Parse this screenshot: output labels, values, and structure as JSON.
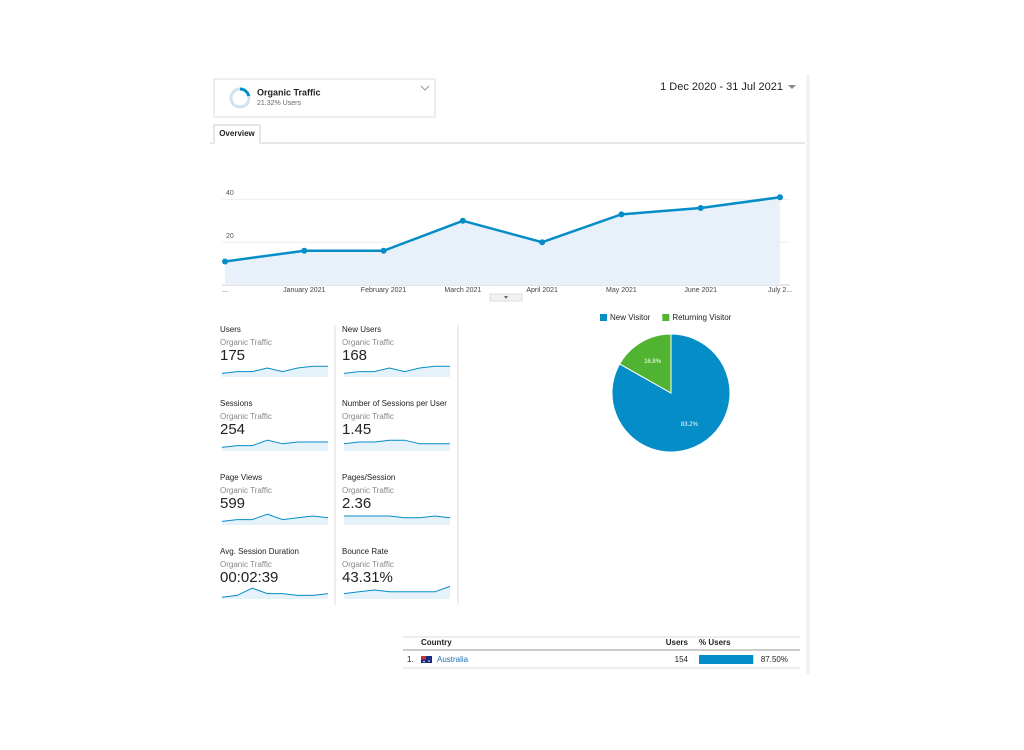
{
  "segment": {
    "name": "Organic Traffic",
    "share": {
      "value": 21.32,
      "label": "21.32% Users"
    }
  },
  "date_range": "1 Dec 2020 - 31 Jul 2021",
  "tab": "Overview",
  "chart_data": [
    {
      "type": "line",
      "categories": [
        "...",
        "January 2021",
        "February 2021",
        "March 2021",
        "April 2021",
        "May 2021",
        "June 2021",
        "July 2..."
      ],
      "values": [
        11,
        16,
        16,
        30,
        20,
        33,
        36,
        41
      ],
      "color": "#058dc7",
      "ylim": [
        0,
        50
      ],
      "yticks": [
        20,
        40
      ],
      "grid": true
    },
    {
      "type": "pie",
      "categories": [
        "New Visitor",
        "Returning Visitor"
      ],
      "values": [
        83.2,
        16.8
      ],
      "value_labels": [
        "83.2%",
        "16.8%"
      ],
      "colors": [
        "#058dc7",
        "#50b432"
      ],
      "legend": "top"
    }
  ],
  "metrics": {
    "trend_ylim": [
      0,
      10
    ],
    "cards": [
      {
        "name": "Users",
        "segment": "Organic Traffic",
        "value": "175",
        "trend": [
          2,
          3,
          3,
          5,
          3,
          5,
          6,
          6
        ]
      },
      {
        "name": "New Users",
        "segment": "Organic Traffic",
        "value": "168",
        "trend": [
          2,
          3,
          3,
          5,
          3,
          5,
          6,
          6
        ]
      },
      {
        "name": "Sessions",
        "segment": "Organic Traffic",
        "value": "254",
        "trend": [
          2,
          3,
          3,
          6,
          4,
          5,
          5,
          5
        ]
      },
      {
        "name": "Number of Sessions per User",
        "segment": "Organic Traffic",
        "value": "1.45",
        "trend": [
          4,
          5,
          5,
          6,
          6,
          4,
          4,
          4
        ]
      },
      {
        "name": "Page Views",
        "segment": "Organic Traffic",
        "value": "599",
        "trend": [
          2,
          3,
          3,
          6,
          3,
          4,
          5,
          4
        ]
      },
      {
        "name": "Pages/Session",
        "segment": "Organic Traffic",
        "value": "2.36",
        "trend": [
          5,
          5,
          5,
          5,
          4,
          4,
          5,
          4
        ]
      },
      {
        "name": "Avg. Session Duration",
        "segment": "Organic Traffic",
        "value": "00:02:39",
        "trend": [
          1,
          2,
          6,
          3,
          3,
          2,
          2,
          3
        ]
      },
      {
        "name": "Bounce Rate",
        "segment": "Organic Traffic",
        "value": "43.31%",
        "trend": [
          3,
          4,
          5,
          4,
          4,
          4,
          4,
          7
        ]
      }
    ]
  },
  "table": {
    "columns": [
      "Country",
      "Users",
      "% Users"
    ],
    "rows": [
      {
        "rank": "1.",
        "country": "Australia",
        "users": "154",
        "share": {
          "value": 87.5,
          "label": "87.50%"
        }
      }
    ]
  }
}
